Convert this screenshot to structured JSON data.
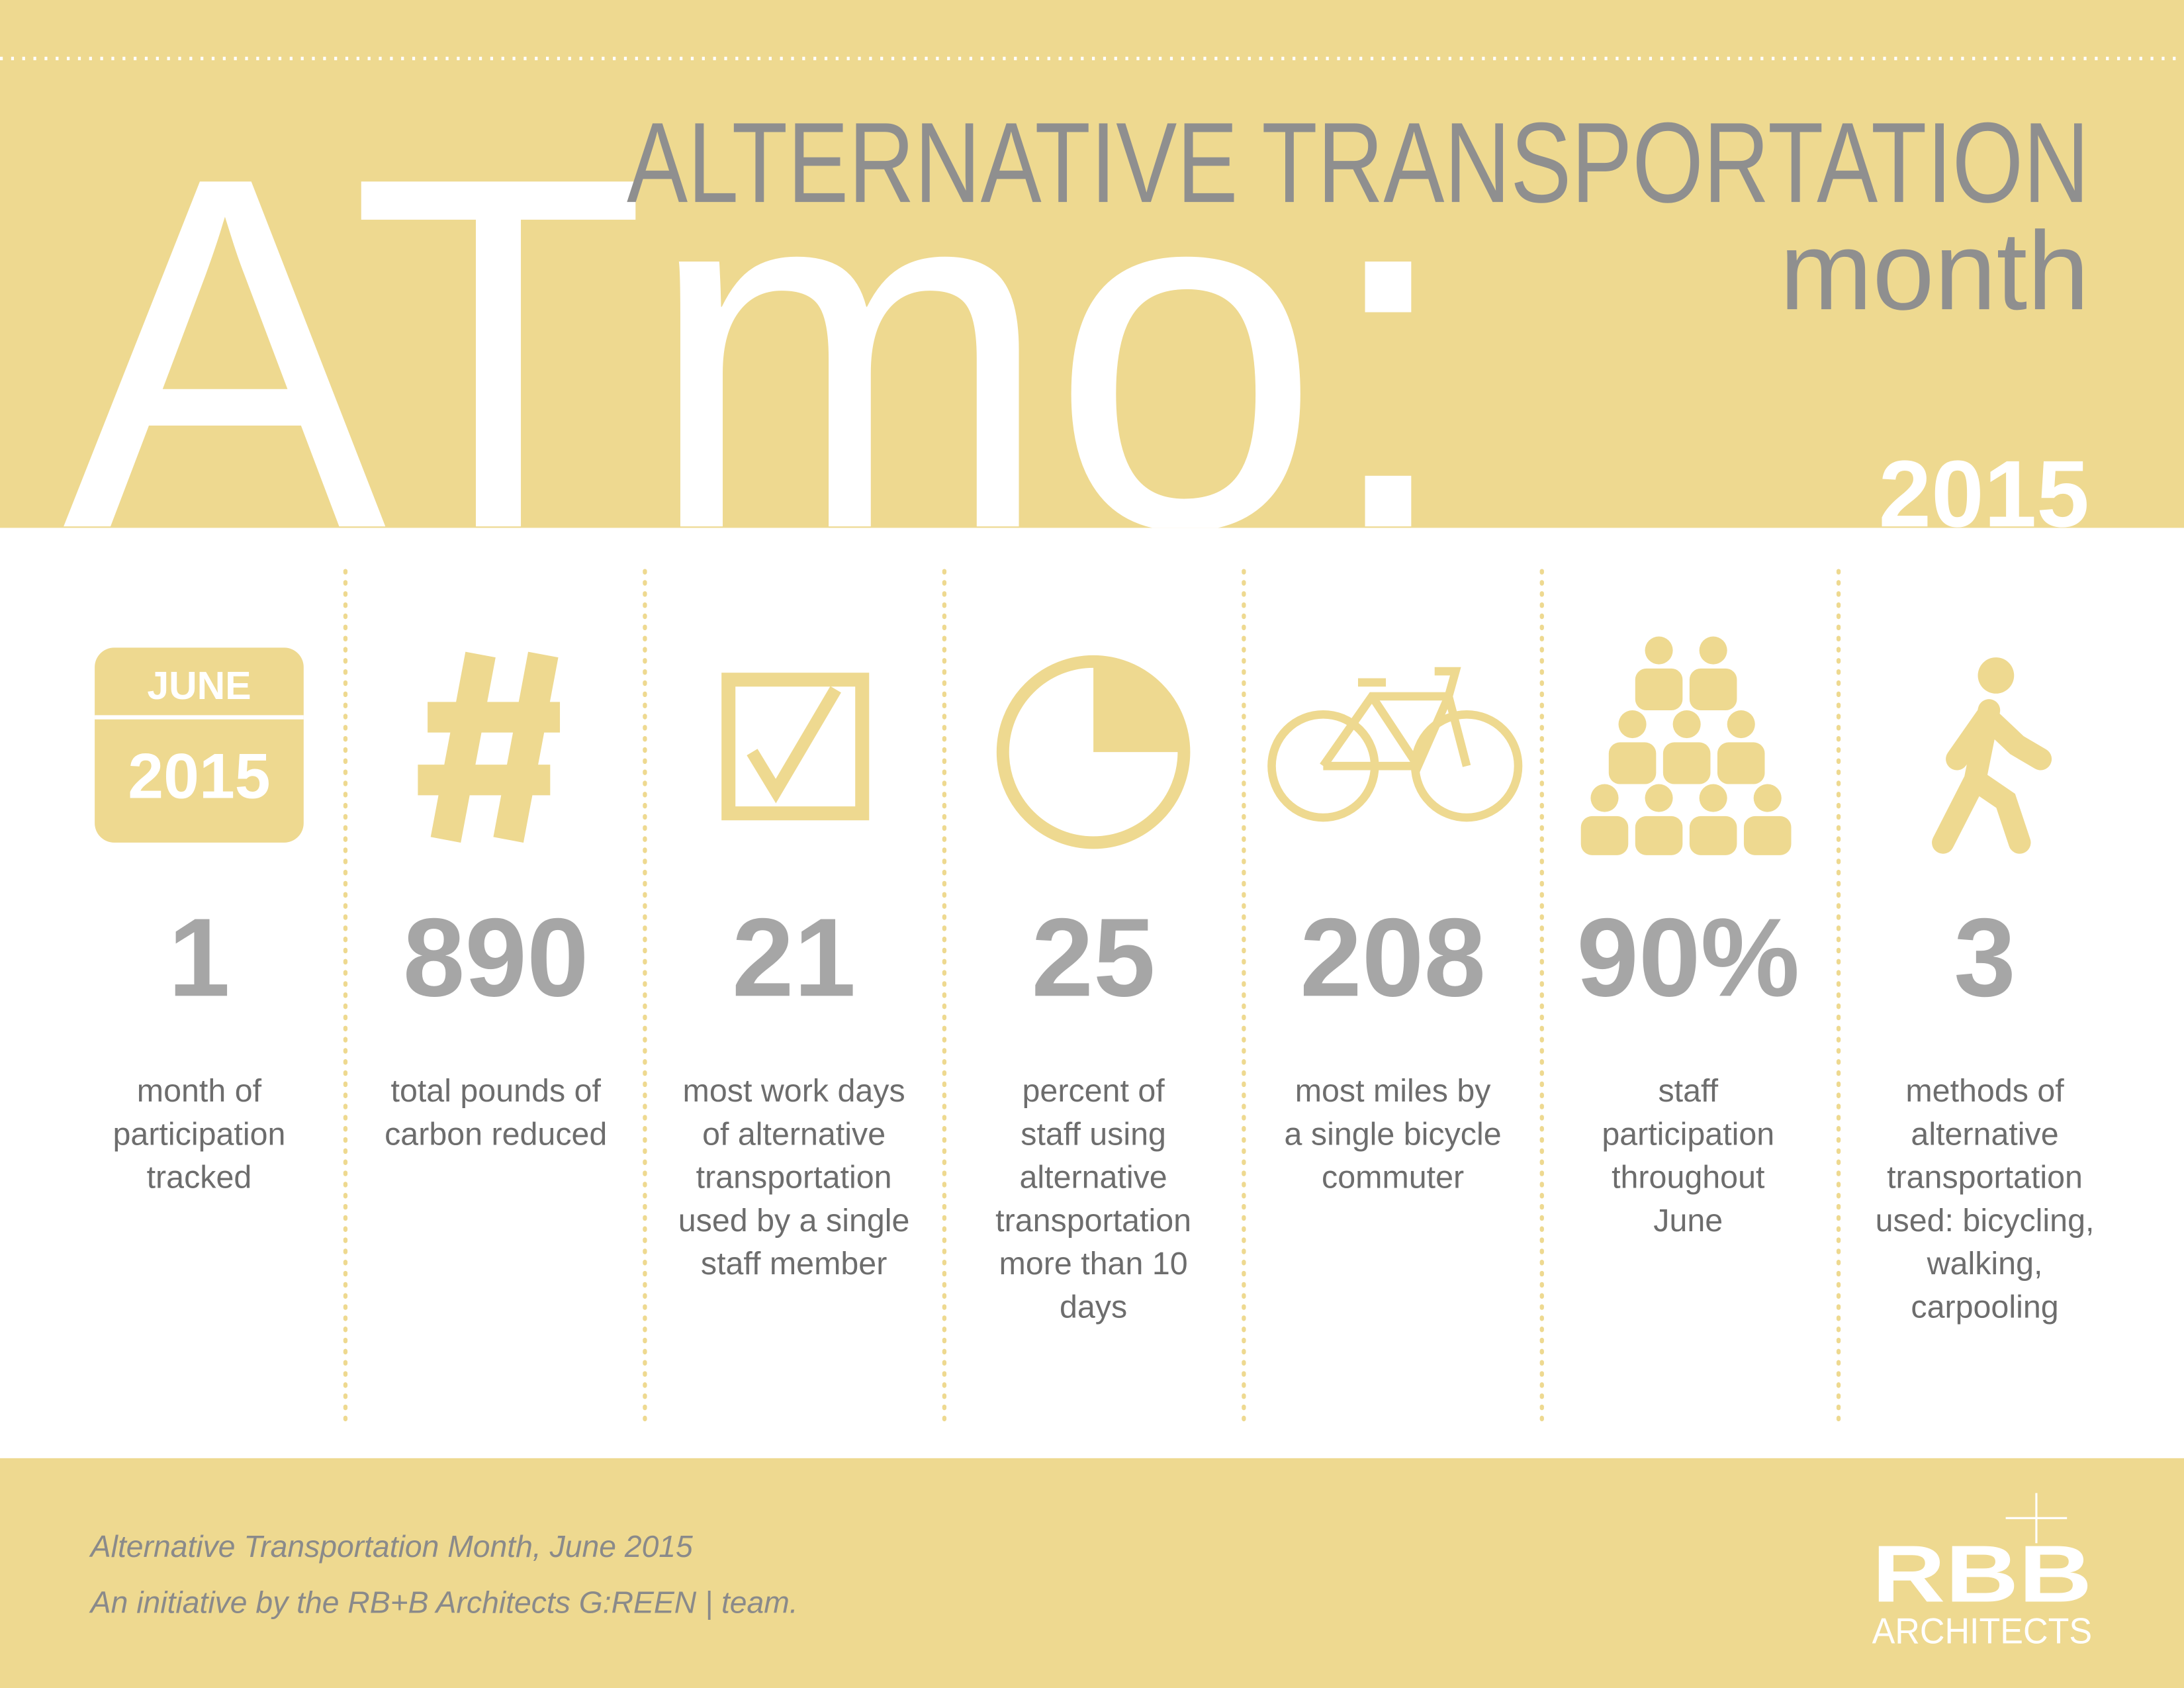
{
  "header": {
    "big": "ATmo:",
    "title": "ALTERNATIVE TRANSPORTATION",
    "subtitle": "month",
    "year": "2015"
  },
  "calendar": {
    "month": "JUNE",
    "year": "2015"
  },
  "stats": [
    {
      "value": "1",
      "description": [
        "month of",
        "participation",
        "tracked"
      ]
    },
    {
      "value": "890",
      "description": [
        "total pounds of",
        "carbon reduced"
      ]
    },
    {
      "value": "21",
      "description": [
        "most work days",
        "of alternative",
        "transportation",
        "used by a single",
        "staff member"
      ]
    },
    {
      "value": "25",
      "description": [
        "percent of",
        "staff using",
        "alternative",
        "transportation",
        "more than 10",
        "days"
      ]
    },
    {
      "value": "208",
      "description": [
        "most miles by",
        "a single bicycle",
        "commuter"
      ]
    },
    {
      "value": "90%",
      "description": [
        "staff",
        "participation",
        "throughout",
        "June"
      ]
    },
    {
      "value": "3",
      "description": [
        "methods of",
        "alternative",
        "transportation",
        "used: bicycling,",
        "walking,",
        "carpooling"
      ]
    }
  ],
  "footer": {
    "lines": [
      "Alternative Transportation Month, June 2015",
      "An initiative by the RB+B Architects G:REEN | team."
    ]
  },
  "logo": {
    "name": "RBB",
    "tagline": "ARCHITECTS"
  }
}
